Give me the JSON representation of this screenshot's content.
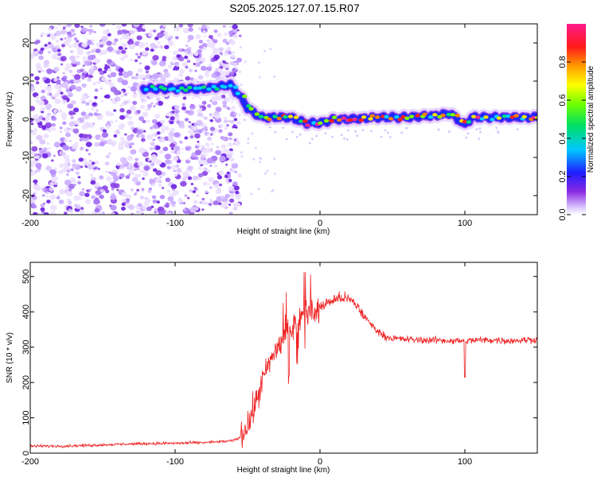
{
  "title": "S205.2025.127.07.15.R07",
  "chart_data": [
    {
      "type": "heatmap",
      "xlabel": "Height of straight line (km)",
      "ylabel": "Frequency (Hz)",
      "xlim": [
        -200,
        150
      ],
      "ylim": [
        -25,
        25
      ],
      "x_ticks": [
        -200,
        -100,
        0,
        100
      ],
      "y_ticks": [
        -20,
        -10,
        0,
        10,
        20
      ],
      "colorbar": {
        "label": "Normalized spectral amplitude",
        "range": [
          0,
          1
        ],
        "ticks": [
          0,
          0.2,
          0.4,
          0.6,
          0.8
        ],
        "colormap": "rainbow (violet-blue-cyan-green-yellow-orange-red-magenta)"
      },
      "noise_region_x": [
        -200,
        -60
      ],
      "ridge": {
        "x": [
          -120,
          -100,
          -80,
          -62,
          -55,
          -50,
          -45,
          -40,
          -30,
          -20,
          -10,
          0,
          10,
          20,
          40,
          60,
          80,
          90,
          95,
          100,
          105,
          110,
          130,
          150
        ],
        "frequency": [
          8,
          8,
          8,
          9,
          6,
          3,
          1.5,
          0.5,
          0.5,
          0.5,
          -1,
          -1,
          0,
          0,
          0.5,
          0.5,
          1,
          1.5,
          0,
          -1.5,
          0.5,
          0.5,
          0.5,
          0.5
        ]
      },
      "grid": false
    },
    {
      "type": "line",
      "xlabel": "Height of straight line (km)",
      "ylabel": "SNR (10 * v/v)",
      "xlim": [
        -200,
        150
      ],
      "ylim": [
        0,
        540
      ],
      "x_ticks": [
        -200,
        -100,
        0,
        100
      ],
      "y_ticks": [
        0,
        100,
        200,
        300,
        400,
        500
      ],
      "series": [
        {
          "color": "#ee2020",
          "x": [
            -200,
            -180,
            -160,
            -140,
            -120,
            -100,
            -80,
            -70,
            -60,
            -55,
            -50,
            -45,
            -40,
            -35,
            -30,
            -25,
            -20,
            -15,
            -10,
            -5,
            0,
            5,
            10,
            15,
            20,
            25,
            30,
            35,
            40,
            45,
            50,
            60,
            70,
            80,
            90,
            100,
            110,
            120,
            130,
            140,
            150
          ],
          "y": [
            20,
            20,
            22,
            25,
            27,
            28,
            30,
            32,
            35,
            45,
            80,
            130,
            200,
            250,
            300,
            330,
            350,
            380,
            400,
            390,
            410,
            425,
            435,
            440,
            435,
            420,
            390,
            365,
            345,
            330,
            325,
            322,
            320,
            320,
            318,
            318,
            320,
            320,
            318,
            320,
            322
          ]
        }
      ],
      "grid": false
    }
  ]
}
